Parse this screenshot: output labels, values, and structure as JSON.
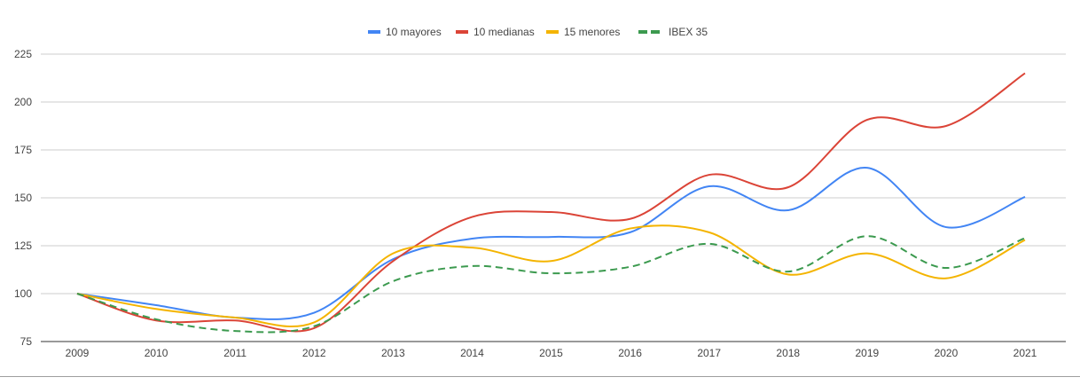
{
  "chart_data": {
    "type": "line",
    "x": [
      "2009",
      "2010",
      "2011",
      "2012",
      "2013",
      "2014",
      "2015",
      "2016",
      "2017",
      "2018",
      "2019",
      "2020",
      "2021"
    ],
    "ylim": [
      75,
      225
    ],
    "yticks": [
      75,
      100,
      125,
      150,
      175,
      200,
      225
    ],
    "grid": true,
    "smooth": true,
    "legend_position": "top",
    "series": [
      {
        "name": "10 mayores",
        "color": "#4285f4",
        "dashed": false,
        "values": [
          100,
          94,
          87.5,
          90,
          118,
          128.7,
          129.6,
          132,
          156,
          143.5,
          165.7,
          134.7,
          150.5
        ]
      },
      {
        "name": "10 medianas",
        "color": "#db4437",
        "dashed": false,
        "values": [
          100,
          86,
          86,
          82,
          117,
          140,
          142.6,
          139,
          162,
          155.5,
          190.7,
          187.5,
          215
        ]
      },
      {
        "name": "15 menores",
        "color": "#f4b400",
        "dashed": false,
        "values": [
          100,
          92,
          87.5,
          85,
          121,
          124,
          117,
          134,
          132,
          110,
          121,
          108,
          128
        ]
      },
      {
        "name": "IBEX 35",
        "color": "#3c9a4f",
        "dashed": true,
        "values": [
          100,
          86.6,
          80.5,
          83,
          106.5,
          114.4,
          110.6,
          114,
          126,
          111.5,
          130,
          113.4,
          129
        ]
      }
    ]
  }
}
